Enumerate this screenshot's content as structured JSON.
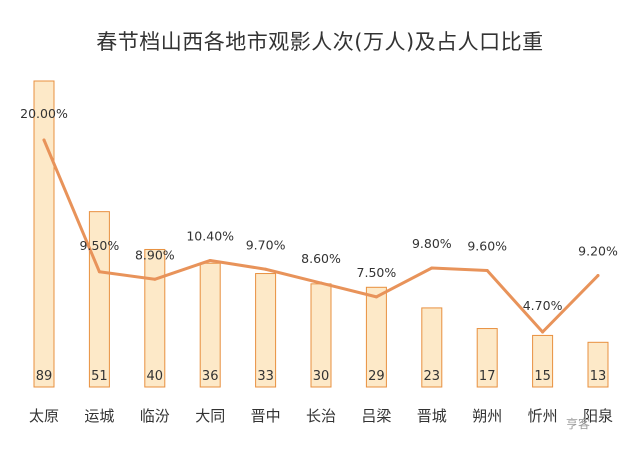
{
  "title": "春节档山西各地市观影人次(万人)及占人口比重",
  "watermark": "亨客",
  "chart_data": {
    "type": "bar",
    "title": "春节档山西各地市观影人次(万人)及占人口比重",
    "categories": [
      "太原",
      "运城",
      "临汾",
      "大同",
      "晋中",
      "长治",
      "吕梁",
      "晋城",
      "朔州",
      "忻州",
      "阳泉"
    ],
    "series": [
      {
        "type": "bar",
        "values": [
          89,
          51,
          40,
          36,
          33,
          30,
          29,
          23,
          17,
          15,
          13
        ]
      },
      {
        "type": "line",
        "values": [
          20.0,
          9.5,
          8.9,
          10.4,
          9.7,
          8.6,
          7.5,
          9.8,
          9.6,
          4.7,
          9.2
        ],
        "labels": [
          "20.00%",
          "9.50%",
          "8.90%",
          "10.40%",
          "9.70%",
          "8.60%",
          "7.50%",
          "9.80%",
          "9.60%",
          "4.70%",
          "9.20%"
        ]
      }
    ],
    "bar_ylim": [
      0,
      89
    ],
    "line_ylim": [
      4.7,
      20.0
    ],
    "grid": false,
    "legend": "none",
    "colors": {
      "bar_fill": "#fde9c8",
      "bar_stroke": "#e8903f",
      "line": "#e8935a"
    }
  }
}
